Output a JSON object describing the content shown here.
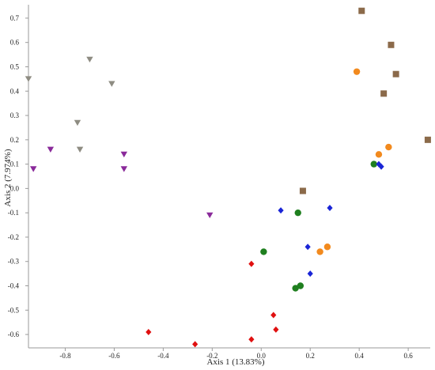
{
  "chart_data": {
    "type": "scatter",
    "title": "",
    "xlabel": "Axis 1 (13.83%)",
    "ylabel": "Axis 2 (7.974%)",
    "xlim": [
      -0.95,
      0.69
    ],
    "ylim": [
      -0.655,
      0.755
    ],
    "xticks": [
      -0.8,
      -0.6,
      -0.4,
      -0.2,
      0.0,
      0.2,
      0.4,
      0.6
    ],
    "xtick_labels": [
      "-0.8",
      "-0.6",
      "-0.4",
      "-0.2",
      "0.0",
      "0.2",
      "0.4",
      "0.6"
    ],
    "yticks": [
      -0.6,
      -0.5,
      -0.4,
      -0.3,
      -0.2,
      -0.1,
      0.0,
      0.1,
      0.2,
      0.3,
      0.4,
      0.5,
      0.6,
      0.7
    ],
    "ytick_labels": [
      "-0.6",
      "-0.5",
      "-0.4",
      "-0.3",
      "-0.2",
      "-0.1",
      "0.0",
      "0.1",
      "0.2",
      "0.3",
      "0.4",
      "0.5",
      "0.6",
      "0.7"
    ],
    "grid": false,
    "legend": "none",
    "series": [
      {
        "marker": "square",
        "color": "#8b6a4a",
        "points": [
          [
            0.41,
            0.73
          ],
          [
            0.53,
            0.59
          ],
          [
            0.55,
            0.47
          ],
          [
            0.5,
            0.39
          ],
          [
            0.68,
            0.2
          ],
          [
            0.17,
            -0.01
          ]
        ]
      },
      {
        "marker": "circle",
        "color": "#f28a1e",
        "points": [
          [
            0.39,
            0.48
          ],
          [
            0.52,
            0.17
          ],
          [
            0.48,
            0.14
          ],
          [
            0.27,
            -0.24
          ],
          [
            0.24,
            -0.26
          ]
        ]
      },
      {
        "marker": "circle",
        "color": "#1f7f1f",
        "points": [
          [
            0.46,
            0.1
          ],
          [
            0.15,
            -0.1
          ],
          [
            0.01,
            -0.26
          ],
          [
            0.16,
            -0.4
          ],
          [
            0.14,
            -0.41
          ]
        ]
      },
      {
        "marker": "diamond",
        "color": "#1a25d6",
        "points": [
          [
            0.48,
            0.1
          ],
          [
            0.49,
            0.09
          ],
          [
            0.08,
            -0.09
          ],
          [
            0.28,
            -0.08
          ],
          [
            0.19,
            -0.24
          ],
          [
            0.2,
            -0.35
          ]
        ]
      },
      {
        "marker": "diamond",
        "color": "#e01010",
        "points": [
          [
            -0.04,
            -0.31
          ],
          [
            0.05,
            -0.52
          ],
          [
            0.06,
            -0.58
          ],
          [
            -0.46,
            -0.59
          ],
          [
            -0.04,
            -0.62
          ],
          [
            -0.27,
            -0.64
          ]
        ]
      },
      {
        "marker": "triangle-down",
        "color": "#8e8c82",
        "points": [
          [
            -0.95,
            0.45
          ],
          [
            -0.7,
            0.53
          ],
          [
            -0.61,
            0.43
          ],
          [
            -0.75,
            0.27
          ],
          [
            -0.74,
            0.16
          ]
        ]
      },
      {
        "marker": "triangle-down",
        "color": "#8a2a9a",
        "points": [
          [
            -0.86,
            0.16
          ],
          [
            -0.93,
            0.08
          ],
          [
            -0.56,
            0.14
          ],
          [
            -0.56,
            0.08
          ],
          [
            -0.21,
            -0.11
          ]
        ]
      }
    ]
  }
}
